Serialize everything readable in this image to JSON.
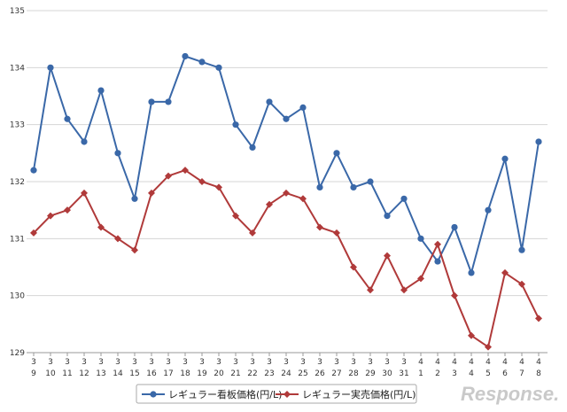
{
  "chart_data": {
    "type": "line",
    "title": "",
    "xlabel": "",
    "ylabel": "",
    "ylim": [
      129,
      135
    ],
    "yticks": [
      129,
      130,
      131,
      132,
      133,
      134,
      135
    ],
    "grid": "horizontal",
    "legend_position": "bottom",
    "categories": [
      [
        "3",
        "9"
      ],
      [
        "3",
        "10"
      ],
      [
        "3",
        "11"
      ],
      [
        "3",
        "12"
      ],
      [
        "3",
        "13"
      ],
      [
        "3",
        "14"
      ],
      [
        "3",
        "15"
      ],
      [
        "3",
        "16"
      ],
      [
        "3",
        "17"
      ],
      [
        "3",
        "18"
      ],
      [
        "3",
        "19"
      ],
      [
        "3",
        "20"
      ],
      [
        "3",
        "21"
      ],
      [
        "3",
        "22"
      ],
      [
        "3",
        "23"
      ],
      [
        "3",
        "24"
      ],
      [
        "3",
        "25"
      ],
      [
        "3",
        "26"
      ],
      [
        "3",
        "27"
      ],
      [
        "3",
        "28"
      ],
      [
        "3",
        "29"
      ],
      [
        "3",
        "30"
      ],
      [
        "3",
        "31"
      ],
      [
        "4",
        "1"
      ],
      [
        "4",
        "2"
      ],
      [
        "4",
        "3"
      ],
      [
        "4",
        "4"
      ],
      [
        "4",
        "5"
      ],
      [
        "4",
        "6"
      ],
      [
        "4",
        "7"
      ],
      [
        "4",
        "8"
      ]
    ],
    "series": [
      {
        "name": "レギュラー看板価格(円/L)",
        "color": "#3a68a8",
        "marker": "circle",
        "values": [
          132.2,
          134.0,
          133.1,
          132.7,
          133.6,
          132.5,
          131.7,
          133.4,
          133.4,
          134.2,
          134.1,
          134.0,
          133.0,
          132.6,
          133.4,
          133.1,
          133.3,
          131.9,
          132.5,
          131.9,
          132.0,
          131.4,
          131.7,
          131.0,
          130.6,
          131.2,
          130.4,
          131.5,
          132.4,
          130.8,
          132.7
        ]
      },
      {
        "name": "レギュラー実売価格(円/L)",
        "color": "#b03a3a",
        "marker": "diamond",
        "values": [
          131.1,
          131.4,
          131.5,
          131.8,
          131.2,
          131.0,
          130.8,
          131.8,
          132.1,
          132.2,
          132.0,
          131.9,
          131.4,
          131.1,
          131.6,
          131.8,
          131.7,
          131.2,
          131.1,
          130.5,
          130.1,
          130.7,
          130.1,
          130.3,
          130.9,
          130.0,
          129.3,
          129.1,
          130.4,
          130.2,
          129.6
        ]
      }
    ]
  },
  "watermark": "Response."
}
